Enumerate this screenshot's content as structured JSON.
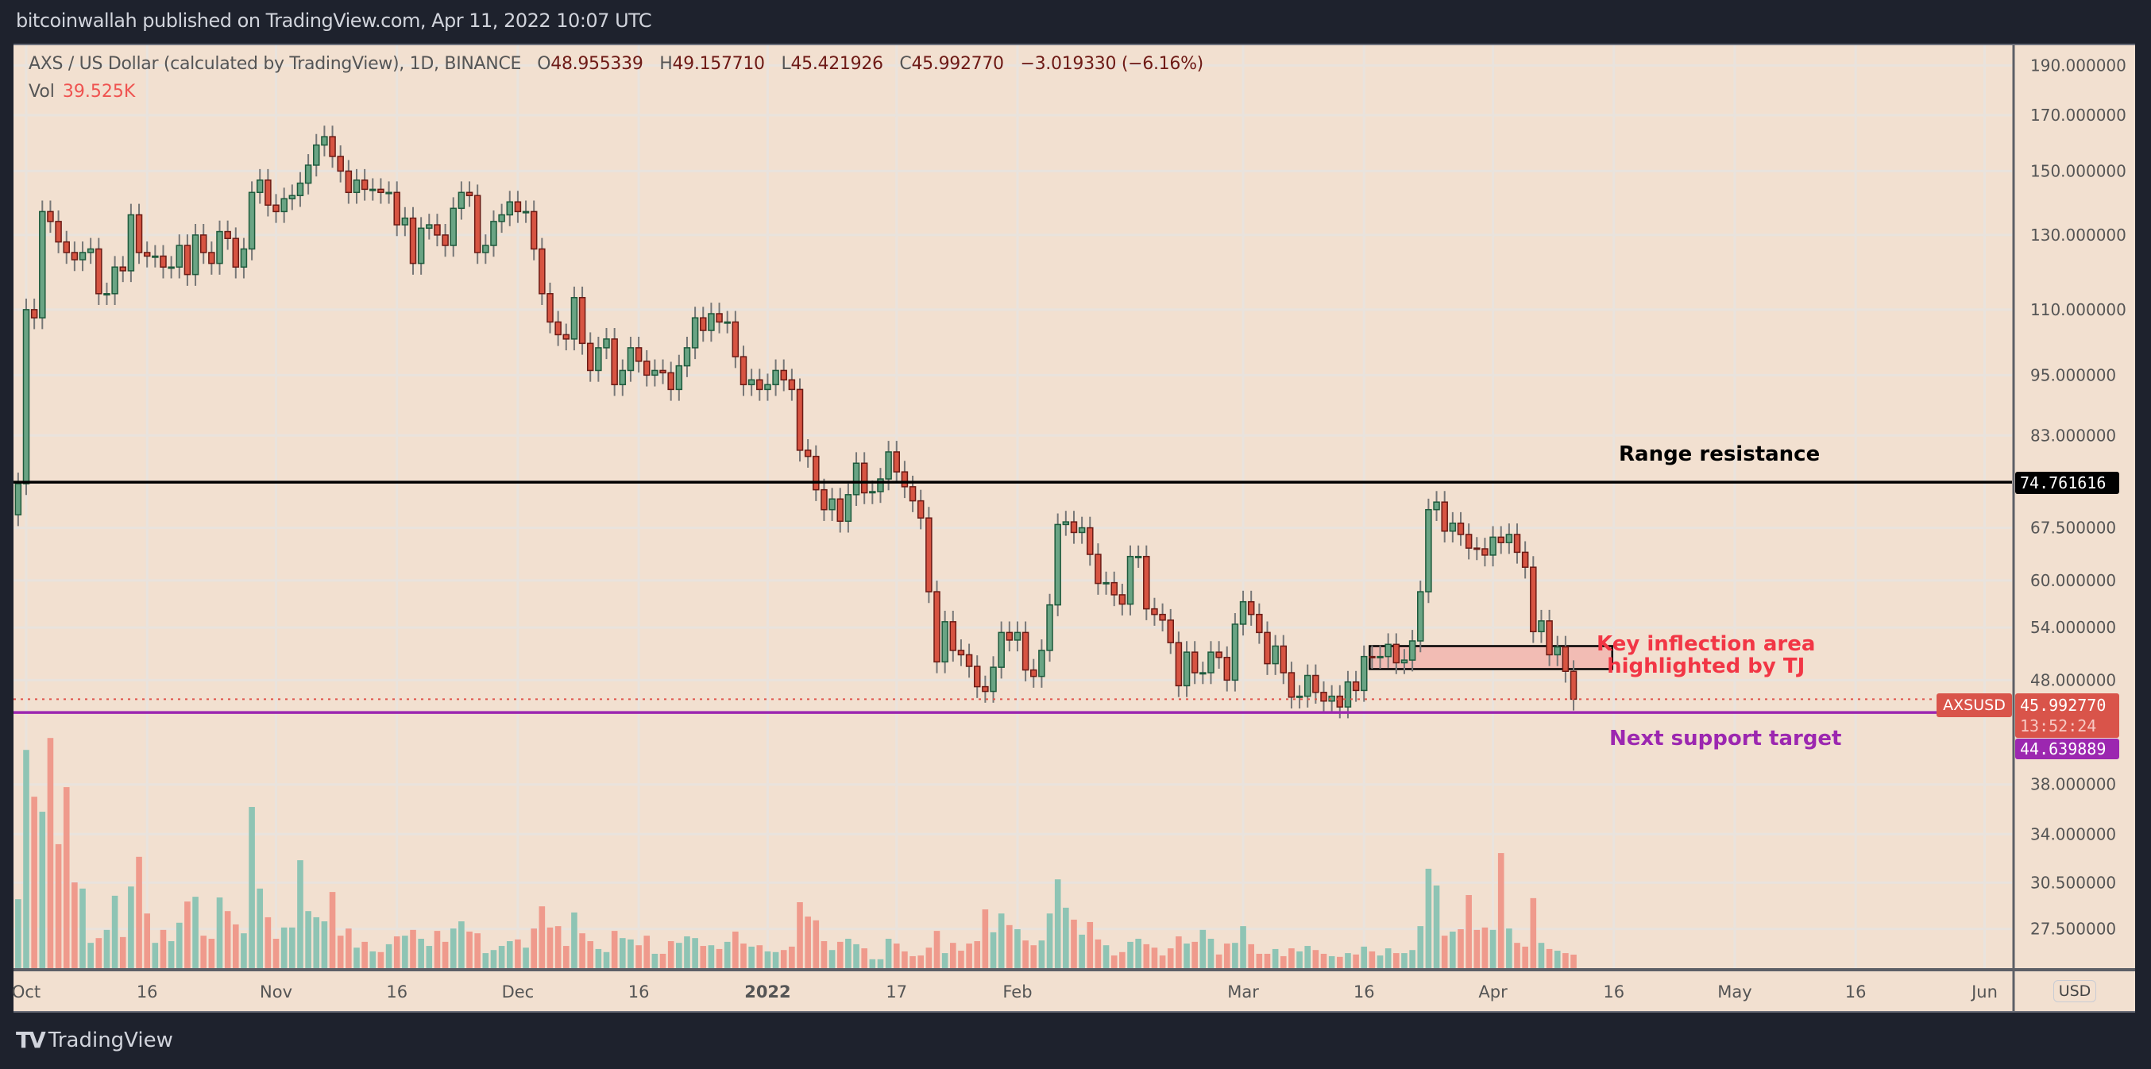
{
  "header": {
    "publisher_line": "bitcoinwallah published on TradingView.com, Apr 11, 2022 10:07 UTC"
  },
  "legend": {
    "symbol_title": "AXS / US Dollar (calculated by TradingView), 1D, BINANCE",
    "open_label": "O",
    "open": "48.955339",
    "high_label": "H",
    "high": "49.157710",
    "low_label": "L",
    "low": "45.421926",
    "close_label": "C",
    "close": "45.992770",
    "change": "−3.019330 (−6.16%)",
    "vol_label": "Vol",
    "vol_value": "39.525K"
  },
  "price_axis": {
    "currency_button": "USD",
    "scale": "log",
    "ticks": [
      "190.000000",
      "170.000000",
      "150.000000",
      "130.000000",
      "110.000000",
      "95.000000",
      "83.000000",
      "67.500000",
      "60.000000",
      "54.000000",
      "48.000000",
      "38.000000",
      "34.000000",
      "30.500000",
      "27.500000"
    ],
    "resistance_tag": "74.761616",
    "symbol_tag": "AXSUSD",
    "last_price_tag": "45.992770",
    "countdown": "13:52:24",
    "support_tag": "44.639889"
  },
  "time_axis": {
    "ticks": [
      {
        "label": "Oct",
        "date": "2021-10-01"
      },
      {
        "label": "16",
        "date": "2021-10-16"
      },
      {
        "label": "Nov",
        "date": "2021-11-01"
      },
      {
        "label": "16",
        "date": "2021-11-16"
      },
      {
        "label": "Dec",
        "date": "2021-12-01"
      },
      {
        "label": "16",
        "date": "2021-12-16"
      },
      {
        "label": "2022",
        "date": "2022-01-01",
        "bold": true
      },
      {
        "label": "17",
        "date": "2022-01-17"
      },
      {
        "label": "Feb",
        "date": "2022-02-01"
      },
      {
        "label": "Mar",
        "date": "2022-03-01"
      },
      {
        "label": "16",
        "date": "2022-03-16"
      },
      {
        "label": "Apr",
        "date": "2022-04-01"
      },
      {
        "label": "16",
        "date": "2022-04-16"
      },
      {
        "label": "May",
        "date": "2022-05-01"
      },
      {
        "label": "16",
        "date": "2022-05-16"
      },
      {
        "label": "Jun",
        "date": "2022-06-01"
      }
    ]
  },
  "annotations": {
    "range_resistance": {
      "label": "Range resistance",
      "price": 74.761616,
      "color": "#000000"
    },
    "next_support": {
      "label": "Next support target",
      "price": 44.639889,
      "color": "#9c27b0"
    },
    "key_area": {
      "line1": "Key inflection area",
      "line2": "highlighted by TJ",
      "price_from": 49.2,
      "price_to": 51.8,
      "date_from": "2022-03-17",
      "date_to": "2022-04-16",
      "fill": "#f2bcb4",
      "label_color": "#f23645"
    },
    "last_price_line": {
      "price": 45.99277,
      "color": "#e0544b"
    }
  },
  "colors": {
    "up": "#6aa484",
    "up_border": "#1e5a3c",
    "down": "#d75442",
    "down_border": "#6b1b15",
    "wick": "#777777",
    "vol_up": "#8ec4b4",
    "vol_down": "#ef9a8c",
    "background": "#f2e0d0"
  },
  "chart_data": {
    "type": "candlestick",
    "symbol": "AXSUSD",
    "interval": "1D",
    "yscale": "log",
    "grid": true,
    "first_open": 69.5,
    "months": [
      {
        "month": "2021-09",
        "first_day": 30,
        "close": [
          74.5
        ],
        "volume_k": [
          202
        ]
      },
      {
        "month": "2021-10",
        "first_day": 1,
        "close": [
          110,
          108,
          137,
          134,
          128,
          125,
          123,
          125,
          126,
          114,
          114,
          121,
          120,
          136,
          125,
          124,
          124,
          121,
          121,
          127,
          119,
          130,
          125,
          122,
          131,
          129,
          121,
          126,
          143,
          147,
          139
        ],
        "volume_k": [
          639,
          502,
          458,
          674,
          363,
          530,
          251,
          233,
          74,
          88,
          112,
          212,
          91,
          239,
          326,
          160,
          74,
          112,
          79,
          133,
          195,
          209,
          95,
          86,
          207,
          167,
          128,
          102,
          472,
          233,
          149
        ]
      },
      {
        "month": "2021-11",
        "first_day": 1,
        "close": [
          137,
          141,
          142,
          146,
          152,
          159,
          162,
          155,
          150,
          143,
          147,
          144,
          144,
          143,
          143,
          133,
          135,
          122,
          132,
          133,
          130,
          127,
          138,
          143,
          142,
          125,
          127,
          134,
          136,
          140
        ],
        "volume_k": [
          86,
          119,
          119,
          316,
          167,
          149,
          137,
          223,
          95,
          116,
          60,
          77,
          49,
          47,
          70,
          93,
          95,
          112,
          86,
          65,
          109,
          77,
          116,
          137,
          107,
          102,
          44,
          53,
          65,
          79
        ]
      },
      {
        "month": "2021-12",
        "first_day": 1,
        "close": [
          137,
          137,
          126,
          114,
          107,
          104,
          103,
          113,
          102,
          96,
          101,
          103,
          93,
          96,
          101,
          98,
          95,
          96,
          95.5,
          92,
          97,
          101,
          108,
          105,
          109,
          107,
          107,
          99,
          93,
          94,
          92
        ],
        "volume_k": [
          84,
          60,
          116,
          181,
          119,
          123,
          65,
          163,
          102,
          79,
          56,
          47,
          109,
          88,
          84,
          67,
          95,
          42,
          42,
          79,
          74,
          93,
          88,
          65,
          67,
          56,
          77,
          107,
          72,
          63,
          67
        ]
      },
      {
        "month": "2022-01",
        "first_day": 1,
        "close": [
          93,
          96,
          94,
          92,
          80.3,
          79.2,
          73.5,
          70.3,
          72,
          68.5,
          72.7,
          78,
          73,
          73.2,
          75.3,
          80,
          76.5,
          74,
          71.7,
          69,
          58.5,
          50,
          54.7,
          51.3,
          50.8,
          49.5,
          47.3,
          46.8,
          49.4,
          53.4,
          52.5
        ],
        "volume_k": [
          49,
          47,
          53,
          63,
          193,
          151,
          140,
          79,
          53,
          77,
          86,
          70,
          58,
          26,
          26,
          86,
          72,
          49,
          35,
          37,
          60,
          109,
          44,
          74,
          51,
          72,
          79,
          172,
          105,
          160,
          126
        ]
      },
      {
        "month": "2022-02",
        "first_day": 1,
        "close": [
          53.4,
          49.1,
          48.4,
          51.3,
          56.8,
          68,
          68.4,
          66.8,
          67.5,
          63.6,
          59.6,
          59.7,
          58.1,
          56.9,
          63.3,
          63.3,
          56.3,
          55.6,
          54.9,
          52.2,
          47.4,
          51.1,
          48.8,
          48.8,
          51.1,
          50.5,
          48,
          54.4
        ],
        "volume_k": [
          114,
          81,
          67,
          81,
          160,
          260,
          177,
          142,
          98,
          135,
          84,
          67,
          37,
          47,
          77,
          86,
          70,
          60,
          37,
          58,
          93,
          72,
          77,
          112,
          86,
          40,
          72,
          74
        ]
      },
      {
        "month": "2022-03",
        "first_day": 1,
        "close": [
          57.2,
          55.6,
          53.4,
          49.8,
          51.8,
          48.8,
          46.2,
          46.3,
          48.5,
          46.7,
          45.8,
          46.3,
          45.2,
          47.8,
          46.9,
          50.6,
          50.5,
          50.6,
          52,
          49.9,
          50.2,
          52.4,
          58.5,
          70.3,
          71.5,
          67,
          68.2,
          66.5,
          64.5,
          64.4,
          63.5
        ],
        "volume_k": [
          123,
          70,
          42,
          42,
          56,
          35,
          58,
          49,
          65,
          53,
          42,
          35,
          33,
          44,
          40,
          63,
          49,
          37,
          58,
          44,
          44,
          53,
          123,
          291,
          242,
          95,
          107,
          114,
          214,
          112,
          119
        ]
      },
      {
        "month": "2022-04",
        "first_day": 1,
        "close": [
          66.1,
          65.3,
          66.5,
          63.9,
          61.8,
          53.5,
          54.8,
          50.8,
          51.7,
          48.955339,
          45.99277
        ],
        "volume_k": [
          112,
          337,
          116,
          74,
          63,
          205,
          74,
          56,
          51,
          44,
          39.525
        ]
      }
    ]
  },
  "footer": {
    "brand": "TradingView",
    "brand_mark": "TV"
  }
}
